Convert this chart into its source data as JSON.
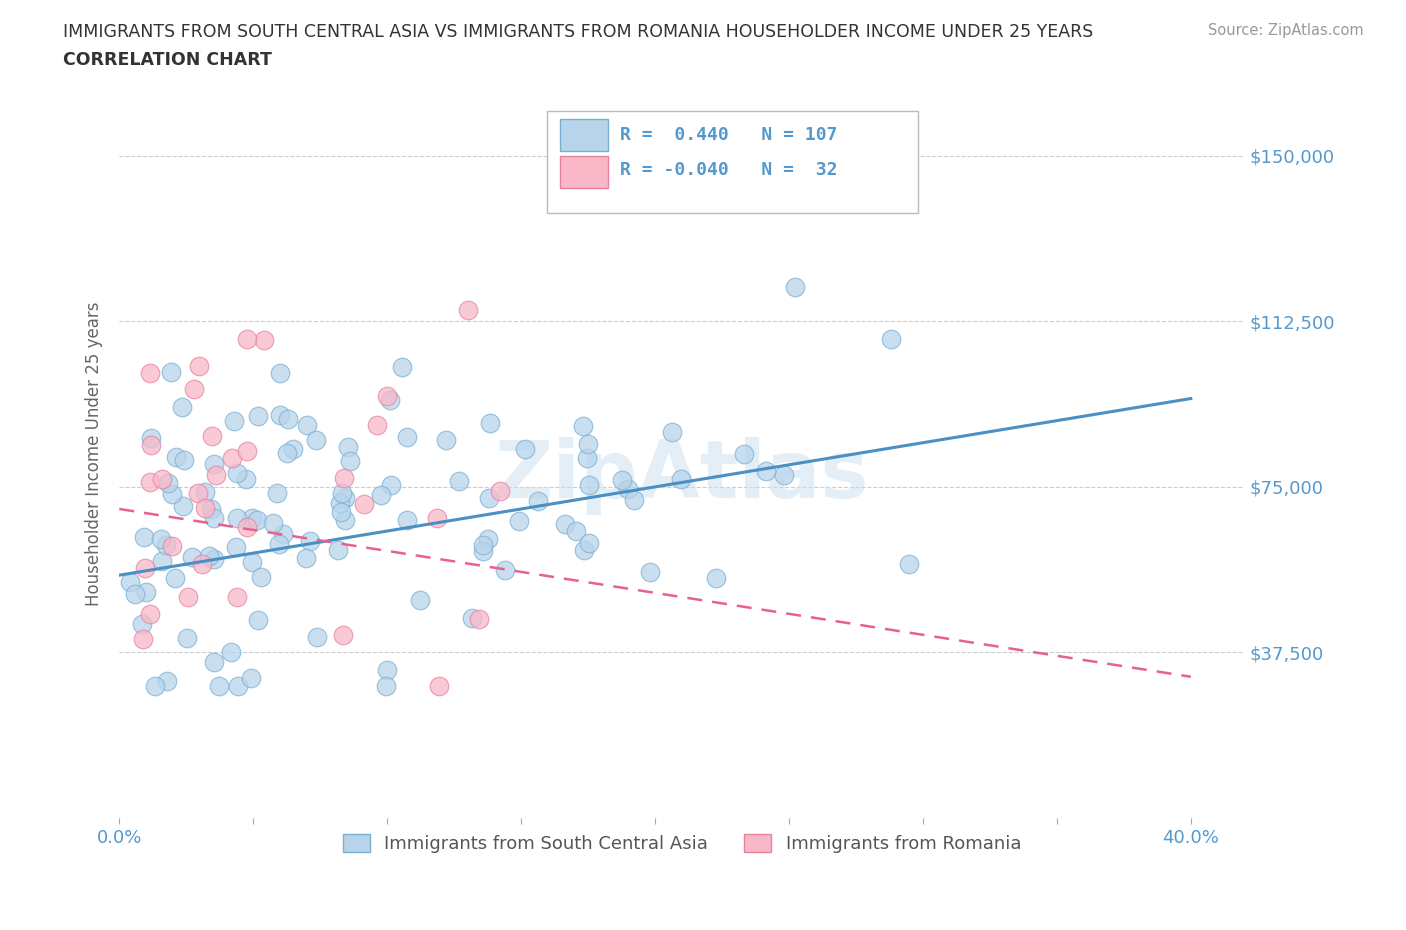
{
  "title_line1": "IMMIGRANTS FROM SOUTH CENTRAL ASIA VS IMMIGRANTS FROM ROMANIA HOUSEHOLDER INCOME UNDER 25 YEARS",
  "title_line2": "CORRELATION CHART",
  "source_text": "Source: ZipAtlas.com",
  "ylabel": "Householder Income Under 25 years",
  "xlim": [
    0.0,
    0.42
  ],
  "ylim": [
    0,
    165000
  ],
  "blue_R": 0.44,
  "blue_N": 107,
  "pink_R": -0.04,
  "pink_N": 32,
  "legend_label_blue": "Immigrants from South Central Asia",
  "legend_label_pink": "Immigrants from Romania",
  "watermark": "ZipAtlas",
  "blue_color": "#b8d4ea",
  "blue_edge": "#7aafd4",
  "blue_line_color": "#4a90c4",
  "pink_color": "#f8b8c8",
  "pink_edge": "#e880a0",
  "pink_line_color": "#e86090",
  "background_color": "#ffffff",
  "grid_color": "#cccccc",
  "title_color": "#333333",
  "source_color": "#999999",
  "tick_color": "#5599cc",
  "ylabel_color": "#666666",
  "ytick_vals": [
    0,
    37500,
    75000,
    112500,
    150000
  ],
  "ytick_labels": [
    "",
    "$37,500",
    "$75,000",
    "$112,500",
    "$150,000"
  ],
  "xtick_vals": [
    0.0,
    0.05,
    0.1,
    0.15,
    0.2,
    0.25,
    0.3,
    0.35,
    0.4
  ],
  "xtick_labels": [
    "0.0%",
    "",
    "",
    "",
    "",
    "",
    "",
    "",
    "40.0%"
  ]
}
